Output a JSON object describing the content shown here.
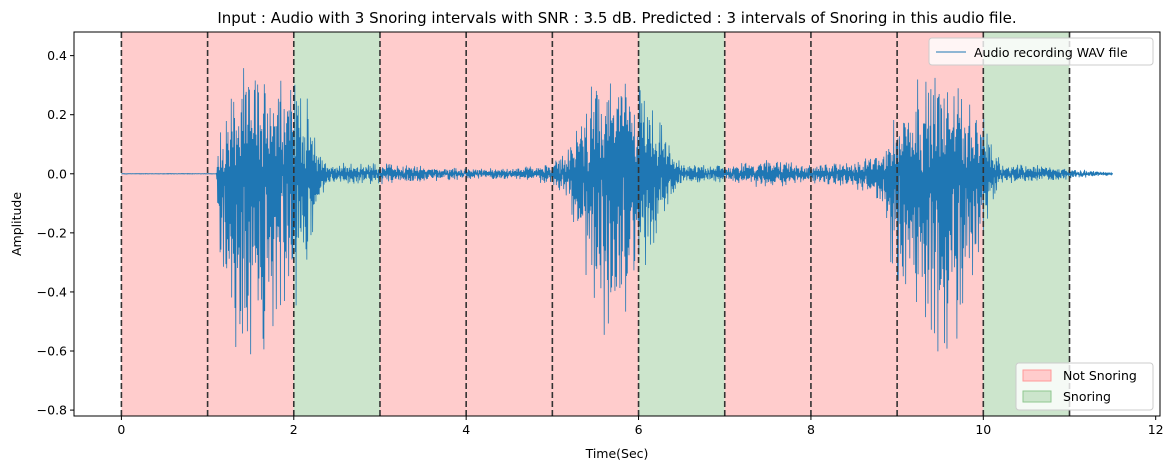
{
  "chart_data": {
    "type": "line",
    "title": "Input : Audio with 3 Snoring intervals with SNR : 3.5 dB. Predicted : 3 intervals of Snoring in this audio file.",
    "xlabel": "Time(Sec)",
    "ylabel": "Amplitude",
    "xlim": [
      -0.55,
      12.05
    ],
    "ylim": [
      -0.82,
      0.48
    ],
    "xticks": [
      0,
      2,
      4,
      6,
      8,
      10,
      12
    ],
    "yticks": [
      -0.8,
      -0.6,
      -0.4,
      -0.2,
      0.0,
      0.2,
      0.4
    ],
    "xtick_labels": [
      "0",
      "2",
      "4",
      "6",
      "8",
      "10",
      "12"
    ],
    "ytick_labels": [
      "−0.8",
      "−0.6",
      "−0.4",
      "−0.2",
      "0.0",
      "0.2",
      "0.4"
    ],
    "grid": false,
    "intervals": [
      {
        "start": 0,
        "end": 1,
        "label": "Not Snoring"
      },
      {
        "start": 1,
        "end": 2,
        "label": "Not Snoring"
      },
      {
        "start": 2,
        "end": 3,
        "label": "Snoring"
      },
      {
        "start": 3,
        "end": 4,
        "label": "Not Snoring"
      },
      {
        "start": 4,
        "end": 5,
        "label": "Not Snoring"
      },
      {
        "start": 5,
        "end": 6,
        "label": "Not Snoring"
      },
      {
        "start": 6,
        "end": 7,
        "label": "Snoring"
      },
      {
        "start": 7,
        "end": 8,
        "label": "Not Snoring"
      },
      {
        "start": 8,
        "end": 9,
        "label": "Not Snoring"
      },
      {
        "start": 9,
        "end": 10,
        "label": "Not Snoring"
      },
      {
        "start": 10,
        "end": 11,
        "label": "Snoring"
      }
    ],
    "boundaries": [
      0,
      1,
      2,
      3,
      4,
      5,
      6,
      7,
      8,
      9,
      10,
      11
    ],
    "waveform_envelope": {
      "t": [
        0.0,
        1.1,
        1.15,
        1.3,
        1.5,
        1.7,
        1.9,
        2.1,
        2.3,
        2.4,
        2.6,
        3.0,
        3.5,
        4.0,
        4.5,
        5.0,
        5.2,
        5.4,
        5.6,
        5.8,
        6.0,
        6.2,
        6.4,
        6.5,
        6.8,
        7.0,
        7.4,
        7.6,
        7.9,
        8.2,
        8.5,
        8.8,
        9.0,
        9.2,
        9.4,
        9.6,
        9.8,
        10.0,
        10.2,
        10.4,
        11.0,
        11.5
      ],
      "upper": [
        0.001,
        0.001,
        0.18,
        0.35,
        0.38,
        0.4,
        0.4,
        0.33,
        0.1,
        0.03,
        0.04,
        0.04,
        0.03,
        0.02,
        0.02,
        0.04,
        0.1,
        0.28,
        0.4,
        0.4,
        0.35,
        0.22,
        0.1,
        0.03,
        0.04,
        0.03,
        0.05,
        0.06,
        0.03,
        0.04,
        0.05,
        0.08,
        0.22,
        0.36,
        0.38,
        0.38,
        0.3,
        0.2,
        0.04,
        0.04,
        0.02,
        0.005
      ],
      "lower": [
        -0.001,
        -0.001,
        -0.45,
        -0.62,
        -0.68,
        -0.7,
        -0.72,
        -0.42,
        -0.1,
        -0.04,
        -0.04,
        -0.04,
        -0.03,
        -0.02,
        -0.02,
        -0.04,
        -0.1,
        -0.48,
        -0.56,
        -0.56,
        -0.44,
        -0.22,
        -0.12,
        -0.03,
        -0.04,
        -0.03,
        -0.05,
        -0.06,
        -0.03,
        -0.04,
        -0.05,
        -0.1,
        -0.48,
        -0.6,
        -0.66,
        -0.7,
        -0.6,
        -0.25,
        -0.04,
        -0.04,
        -0.02,
        -0.005
      ]
    },
    "series": [
      {
        "name": "Audio recording WAV file",
        "color": "#1f77b4"
      }
    ],
    "legend_top": {
      "label": "Audio recording WAV file",
      "placement": "top-right"
    },
    "legend_bottom": {
      "placement": "bottom-right",
      "items": [
        {
          "label": "Not Snoring",
          "color": "#ff9999"
        },
        {
          "label": "Snoring",
          "color": "#90c890"
        }
      ]
    },
    "colors": {
      "not_snoring": "#ffcccc",
      "snoring": "#cce5cc",
      "boundary": "#333333",
      "waveform": "#1f77b4"
    }
  }
}
